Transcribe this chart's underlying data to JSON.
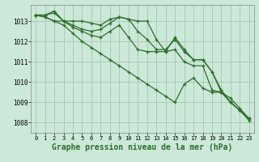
{
  "background_color": "#cce8d8",
  "grid_color": "#aaccb8",
  "line_color": "#2d6e2d",
  "xlabel": "Graphe pression niveau de la mer (hPa)",
  "xlabel_fontsize": 7,
  "xlim": [
    -0.5,
    23.5
  ],
  "ylim": [
    1007.5,
    1013.8
  ],
  "yticks": [
    1008,
    1009,
    1010,
    1011,
    1012,
    1013
  ],
  "xticks": [
    0,
    1,
    2,
    3,
    4,
    5,
    6,
    7,
    8,
    9,
    10,
    11,
    12,
    13,
    14,
    15,
    16,
    17,
    18,
    19,
    20,
    21,
    22,
    23
  ],
  "series": [
    {
      "x": [
        0,
        1,
        2,
        3,
        4,
        5,
        6,
        7,
        8,
        9,
        10,
        11,
        12,
        13,
        14,
        15,
        16,
        17,
        18,
        19,
        20,
        21,
        22,
        23
      ],
      "y": [
        1013.3,
        1013.3,
        1013.5,
        1013.0,
        1013.0,
        1013.0,
        1012.9,
        1012.8,
        1013.1,
        1013.2,
        1013.1,
        1013.0,
        1013.0,
        1012.1,
        1011.5,
        1012.2,
        1011.6,
        1011.1,
        1011.1,
        1010.5,
        1009.6,
        1009.0,
        1008.6,
        1008.2
      ]
    },
    {
      "x": [
        0,
        1,
        2,
        3,
        4,
        5,
        6,
        7,
        8,
        9,
        10,
        11,
        12,
        13,
        14,
        15,
        16,
        17,
        18,
        19,
        20,
        21,
        22,
        23
      ],
      "y": [
        1013.3,
        1013.3,
        1013.4,
        1013.0,
        1012.8,
        1012.6,
        1012.5,
        1012.6,
        1012.9,
        1013.2,
        1013.1,
        1012.5,
        1012.1,
        1011.6,
        1011.6,
        1012.1,
        1011.5,
        1011.1,
        1011.1,
        1010.5,
        1009.5,
        1009.0,
        1008.6,
        1008.1
      ]
    },
    {
      "x": [
        0,
        1,
        2,
        3,
        4,
        5,
        6,
        7,
        8,
        9,
        10,
        11,
        12,
        13,
        14,
        15,
        16,
        17,
        18,
        19,
        20,
        21,
        22,
        23
      ],
      "y": [
        1013.3,
        1013.2,
        1013.0,
        1013.0,
        1012.7,
        1012.5,
        1012.3,
        1012.2,
        1012.5,
        1012.8,
        1012.2,
        1011.6,
        1011.5,
        1011.5,
        1011.5,
        1011.6,
        1011.0,
        1010.8,
        1010.8,
        1009.6,
        1009.5,
        1009.0,
        1008.6,
        1008.2
      ]
    },
    {
      "x": [
        0,
        1,
        2,
        3,
        4,
        5,
        6,
        7,
        8,
        9,
        10,
        11,
        12,
        13,
        14,
        15,
        16,
        17,
        18,
        19,
        20,
        21,
        22,
        23
      ],
      "y": [
        1013.3,
        1013.2,
        1013.0,
        1012.8,
        1012.4,
        1012.0,
        1011.7,
        1011.4,
        1011.1,
        1010.8,
        1010.5,
        1010.2,
        1009.9,
        1009.6,
        1009.3,
        1009.0,
        1009.9,
        1010.2,
        1009.7,
        1009.5,
        1009.5,
        1009.2,
        1008.7,
        1008.2
      ]
    }
  ]
}
